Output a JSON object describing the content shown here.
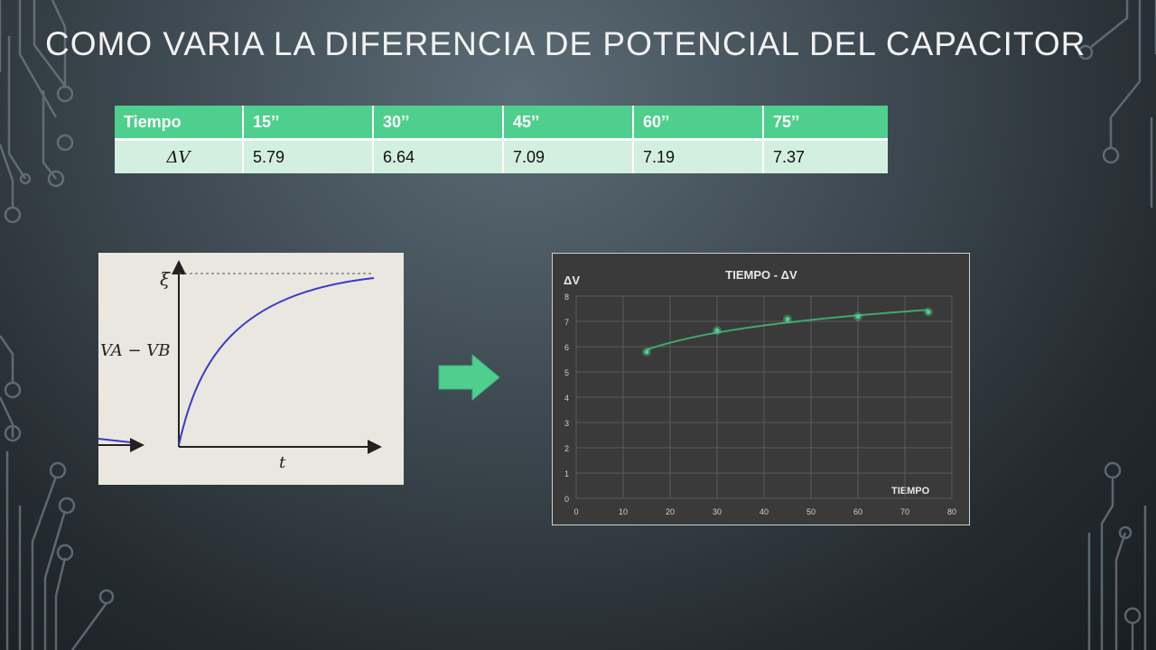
{
  "slide": {
    "title": "COMO VARIA LA DIFERENCIA DE POTENCIAL DEL CAPACITOR"
  },
  "table": {
    "headers": [
      "Tiempo",
      "15’’",
      "30’’",
      "45’’",
      "60’’",
      "75’’"
    ],
    "row_label": "ΔV",
    "values": [
      "5.79",
      "6.64",
      "7.09",
      "7.19",
      "7.37"
    ]
  },
  "theory_graph": {
    "xi_label": "ξ",
    "y_label": "VA − VB",
    "x_label": "t"
  },
  "arrow": {
    "icon": "right-arrow-icon",
    "color": "#4fcf8e"
  },
  "chart_data": {
    "type": "scatter",
    "title": "TIEMPO - ΔV",
    "xlabel": "TIEMPO",
    "ylabel": "ΔV",
    "x": [
      15,
      30,
      45,
      60,
      75
    ],
    "y": [
      5.79,
      6.64,
      7.09,
      7.19,
      7.37
    ],
    "trendline": "logarithmic",
    "xlim": [
      0,
      80
    ],
    "ylim": [
      0,
      8
    ],
    "xticks": [
      "0",
      "10",
      "20",
      "30",
      "40",
      "50",
      "60",
      "70",
      "80"
    ],
    "yticks": [
      "0",
      "1",
      "2",
      "3",
      "4",
      "5",
      "6",
      "7",
      "8"
    ],
    "grid": true,
    "point_color": "#4fcf8e",
    "line_color": "#3fa870"
  }
}
